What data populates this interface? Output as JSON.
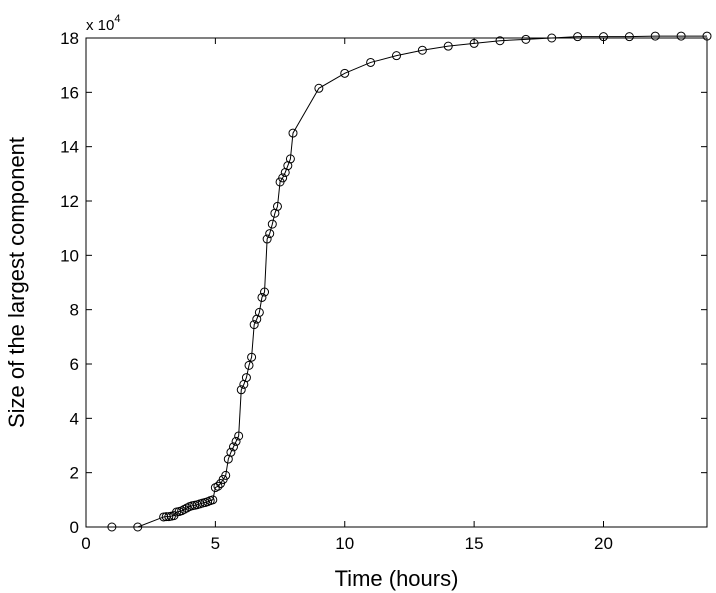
{
  "chart_data": {
    "type": "line",
    "title": "",
    "xlabel": "Time (hours)",
    "ylabel": "Size of the largest component",
    "y_multiplier_label": "x 10",
    "y_multiplier_exponent": "4",
    "xlim": [
      0,
      24
    ],
    "ylim": [
      0,
      18
    ],
    "x_ticks": [
      0,
      5,
      10,
      15,
      20
    ],
    "x_tick_labels": [
      "0",
      "5",
      "10",
      "15",
      "20"
    ],
    "y_ticks": [
      0,
      2,
      4,
      6,
      8,
      10,
      12,
      14,
      16,
      18
    ],
    "y_tick_labels": [
      "0",
      "2",
      "4",
      "6",
      "8",
      "10",
      "12",
      "14",
      "16",
      "18"
    ],
    "grid": false,
    "legend": "none",
    "line_color": "#000000",
    "marker": "circle",
    "series": [
      {
        "x": [
          1,
          2,
          3,
          3.1,
          3.2,
          3.3,
          3.4,
          3.5,
          3.6,
          3.7,
          3.8,
          3.9,
          4.0,
          4.1,
          4.2,
          4.3,
          4.4,
          4.5,
          4.6,
          4.7,
          4.8,
          4.9,
          5.0,
          5.1,
          5.2,
          5.3,
          5.4,
          5.5,
          5.6,
          5.7,
          5.8,
          5.9,
          6.0,
          6.1,
          6.2,
          6.3,
          6.4,
          6.5,
          6.6,
          6.7,
          6.8,
          6.9,
          7.0,
          7.1,
          7.2,
          7.3,
          7.4,
          7.5,
          7.6,
          7.7,
          7.8,
          7.9,
          8.0,
          9,
          10,
          11,
          12,
          13,
          14,
          15,
          16,
          17,
          18,
          19,
          20,
          21,
          22,
          23,
          24
        ],
        "y": [
          0.0,
          0.0,
          0.37,
          0.38,
          0.38,
          0.4,
          0.42,
          0.55,
          0.57,
          0.6,
          0.65,
          0.7,
          0.75,
          0.78,
          0.8,
          0.82,
          0.85,
          0.88,
          0.9,
          0.93,
          0.97,
          1.0,
          1.45,
          1.5,
          1.6,
          1.75,
          1.9,
          2.5,
          2.75,
          2.95,
          3.15,
          3.35,
          5.05,
          5.25,
          5.5,
          5.95,
          6.25,
          7.45,
          7.65,
          7.9,
          8.45,
          8.65,
          10.6,
          10.8,
          11.15,
          11.55,
          11.8,
          12.7,
          12.85,
          13.05,
          13.3,
          13.55,
          14.5,
          16.15,
          16.7,
          17.1,
          17.35,
          17.55,
          17.7,
          17.8,
          17.9,
          17.95,
          18.0,
          18.05,
          18.05,
          18.05,
          18.07,
          18.07,
          18.07
        ]
      }
    ]
  }
}
